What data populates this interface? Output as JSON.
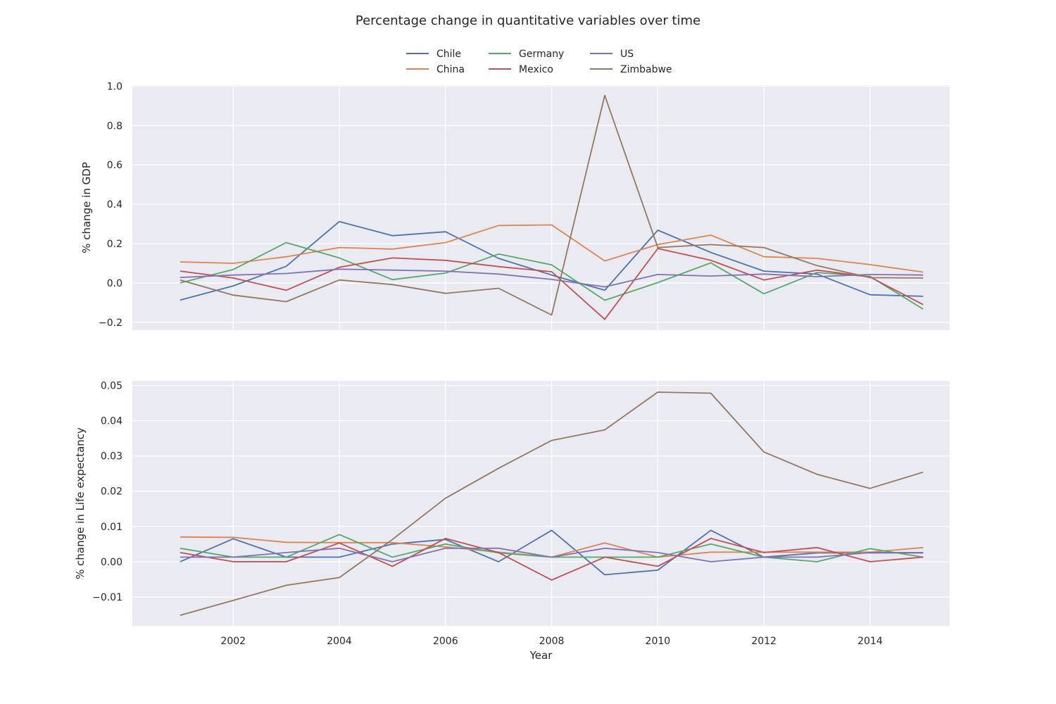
{
  "title": "Percentage change in quantitative variables over time",
  "legend": {
    "placement": "top-center",
    "entries": [
      {
        "name": "Chile",
        "color": "#4c72b0"
      },
      {
        "name": "China",
        "color": "#dd8452"
      },
      {
        "name": "Germany",
        "color": "#55a868"
      },
      {
        "name": "Mexico",
        "color": "#c44e52"
      },
      {
        "name": "US",
        "color": "#8172b3"
      },
      {
        "name": "Zimbabwe",
        "color": "#937860"
      }
    ]
  },
  "chart_data": [
    {
      "type": "line",
      "ylabel": "% change in GDP",
      "xlim": [
        2000.1,
        2015.5
      ],
      "ylim": [
        -0.24,
        1.005
      ],
      "yticks": [
        -0.2,
        0.0,
        0.2,
        0.4,
        0.6,
        0.8,
        1.0
      ],
      "ytick_labels": [
        "−0.2",
        "0.0",
        "0.2",
        "0.4",
        "0.6",
        "0.8",
        "1.0"
      ],
      "xticks": [
        2002,
        2004,
        2006,
        2008,
        2010,
        2012,
        2014
      ],
      "grid": true,
      "x": [
        2001,
        2002,
        2003,
        2004,
        2005,
        2006,
        2007,
        2008,
        2009,
        2010,
        2011,
        2012,
        2013,
        2014,
        2015
      ],
      "series": [
        {
          "name": "Chile",
          "color": "#4c72b0",
          "values": [
            -0.087,
            -0.015,
            0.085,
            0.312,
            0.24,
            0.26,
            0.125,
            0.04,
            -0.037,
            0.268,
            0.155,
            0.06,
            0.045,
            -0.06,
            -0.068
          ]
        },
        {
          "name": "China",
          "color": "#dd8452",
          "values": [
            0.107,
            0.1,
            0.133,
            0.18,
            0.172,
            0.205,
            0.292,
            0.295,
            0.112,
            0.195,
            0.243,
            0.133,
            0.125,
            0.093,
            0.055
          ]
        },
        {
          "name": "Germany",
          "color": "#55a868",
          "values": [
            0.0,
            0.068,
            0.205,
            0.127,
            0.017,
            0.05,
            0.147,
            0.092,
            -0.088,
            0.002,
            0.102,
            -0.055,
            0.053,
            0.033,
            -0.133
          ]
        },
        {
          "name": "Mexico",
          "color": "#c44e52",
          "values": [
            0.06,
            0.025,
            -0.037,
            0.08,
            0.127,
            0.115,
            0.083,
            0.057,
            -0.185,
            0.175,
            0.115,
            0.015,
            0.065,
            0.03,
            -0.11
          ]
        },
        {
          "name": "US",
          "color": "#8172b3",
          "values": [
            0.028,
            0.04,
            0.048,
            0.07,
            0.065,
            0.06,
            0.045,
            0.018,
            -0.02,
            0.043,
            0.035,
            0.045,
            0.032,
            0.043,
            0.04
          ]
        },
        {
          "name": "Zimbabwe",
          "color": "#937860",
          "values": [
            0.015,
            -0.062,
            -0.095,
            0.015,
            -0.008,
            -0.053,
            -0.027,
            -0.163,
            0.953,
            0.18,
            0.195,
            0.18,
            0.088,
            0.027,
            0.025
          ]
        }
      ]
    },
    {
      "type": "line",
      "ylabel": "% change in Life expectancy",
      "xlabel": "Year",
      "xlim": [
        2000.1,
        2015.5
      ],
      "ylim": [
        -0.0182,
        0.0513
      ],
      "yticks": [
        -0.01,
        0.0,
        0.01,
        0.02,
        0.03,
        0.04,
        0.05
      ],
      "ytick_labels": [
        "−0.01",
        "0.00",
        "0.01",
        "0.02",
        "0.03",
        "0.04",
        "0.05"
      ],
      "xticks": [
        2002,
        2004,
        2006,
        2008,
        2010,
        2012,
        2014
      ],
      "xtick_labels": [
        "2002",
        "2004",
        "2006",
        "2008",
        "2010",
        "2012",
        "2014"
      ],
      "grid": true,
      "x": [
        2001,
        2002,
        2003,
        2004,
        2005,
        2006,
        2007,
        2008,
        2009,
        2010,
        2011,
        2012,
        2013,
        2014,
        2015
      ],
      "series": [
        {
          "name": "Chile",
          "color": "#4c72b0",
          "values": [
            0.0,
            0.0065,
            0.0013,
            0.0013,
            0.005,
            0.0063,
            0.0,
            0.0089,
            -0.0037,
            -0.0024,
            0.0089,
            0.0013,
            0.0025,
            0.0025,
            0.0025
          ]
        },
        {
          "name": "China",
          "color": "#dd8452",
          "values": [
            0.007,
            0.0069,
            0.0055,
            0.0054,
            0.0054,
            0.0042,
            0.0027,
            0.0013,
            0.0053,
            0.0013,
            0.0027,
            0.0027,
            0.0027,
            0.0027,
            0.004
          ]
        },
        {
          "name": "Germany",
          "color": "#55a868",
          "values": [
            0.0038,
            0.0013,
            0.0013,
            0.0077,
            0.0013,
            0.005,
            0.0025,
            0.0013,
            0.0013,
            0.0013,
            0.005,
            0.0013,
            0.0,
            0.0037,
            0.0013
          ]
        },
        {
          "name": "Mexico",
          "color": "#c44e52",
          "values": [
            0.0026,
            0.0,
            0.0,
            0.0053,
            -0.0013,
            0.0066,
            0.0026,
            -0.0052,
            0.0013,
            -0.0013,
            0.0066,
            0.0026,
            0.004,
            0.0,
            0.0013
          ]
        },
        {
          "name": "US",
          "color": "#8172b3",
          "values": [
            0.0013,
            0.0013,
            0.0026,
            0.0038,
            0.0,
            0.0038,
            0.0038,
            0.0013,
            0.0038,
            0.0026,
            0.0,
            0.0013,
            0.0013,
            0.0026,
            0.0026
          ]
        },
        {
          "name": "Zimbabwe",
          "color": "#937860",
          "values": [
            -0.0152,
            -0.011,
            -0.0067,
            -0.0045,
            0.0063,
            0.018,
            0.0265,
            0.0344,
            0.0374,
            0.0481,
            0.0478,
            0.0311,
            0.0248,
            0.0208,
            0.0254
          ]
        }
      ]
    }
  ]
}
